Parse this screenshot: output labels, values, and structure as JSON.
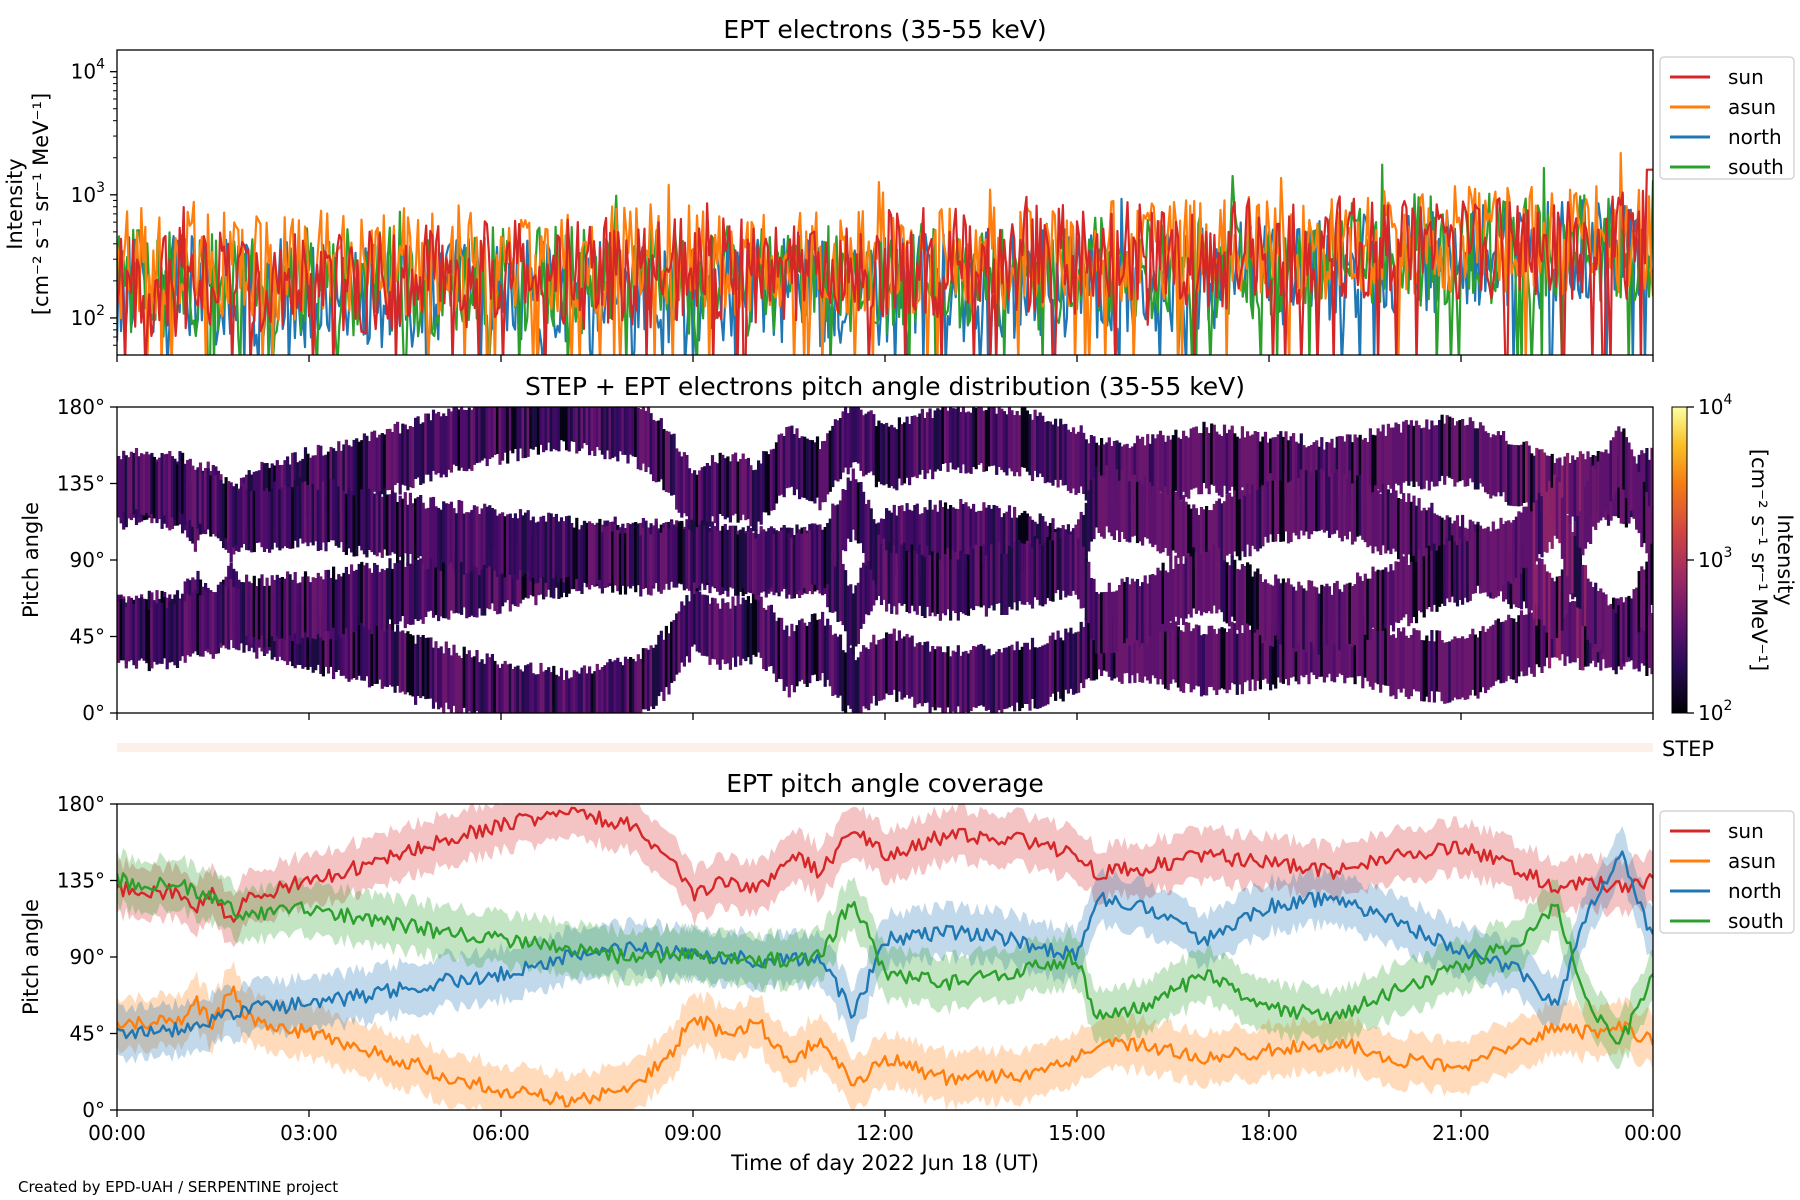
{
  "footer": "Created by EPD-UAH / SERPENTINE project",
  "colors": {
    "sun": "#d62728",
    "asun": "#ff7f0e",
    "north": "#1f77b4",
    "south": "#2ca02c",
    "step_bar": "#fdf0e8"
  },
  "chart_data": [
    {
      "type": "line",
      "title": "EPT electrons (35-55 keV)",
      "ylabel_line1": "Intensity",
      "ylabel_line2": "[cm⁻² s⁻¹ sr⁻¹ MeV⁻¹]",
      "yscale": "log",
      "ylim": [
        50,
        15000
      ],
      "yticks": [
        {
          "v": 100,
          "base": "10",
          "exp": "2"
        },
        {
          "v": 1000,
          "base": "10",
          "exp": "3"
        },
        {
          "v": 10000,
          "base": "10",
          "exp": "4"
        }
      ],
      "xlim_hours": [
        0,
        24
      ],
      "legend_position": "outside-right",
      "series": [
        {
          "name": "sun",
          "color": "#d62728",
          "trend": [
            [
              0,
              200
            ],
            [
              3,
              200
            ],
            [
              6,
              220
            ],
            [
              9,
              240
            ],
            [
              12,
              280
            ],
            [
              15,
              300
            ],
            [
              18,
              340
            ],
            [
              21,
              400
            ],
            [
              24,
              400
            ]
          ],
          "spike": [
            23.9,
            1600
          ]
        },
        {
          "name": "asun",
          "color": "#ff7f0e",
          "trend": [
            [
              0,
              280
            ],
            [
              3,
              270
            ],
            [
              6,
              300
            ],
            [
              9,
              300
            ],
            [
              12,
              280
            ],
            [
              15,
              320
            ],
            [
              18,
              360
            ],
            [
              21,
              420
            ],
            [
              24,
              420
            ]
          ]
        },
        {
          "name": "north",
          "color": "#1f77b4",
          "trend": [
            [
              0,
              170
            ],
            [
              3,
              160
            ],
            [
              6,
              160
            ],
            [
              9,
              150
            ],
            [
              12,
              170
            ],
            [
              15,
              190
            ],
            [
              18,
              240
            ],
            [
              21,
              320
            ],
            [
              24,
              330
            ]
          ]
        },
        {
          "name": "south",
          "color": "#2ca02c",
          "trend": [
            [
              0,
              200
            ],
            [
              3,
              190
            ],
            [
              6,
              200
            ],
            [
              9,
              200
            ],
            [
              12,
              200
            ],
            [
              15,
              230
            ],
            [
              18,
              280
            ],
            [
              21,
              360
            ],
            [
              24,
              380
            ]
          ]
        }
      ]
    },
    {
      "type": "heatmap",
      "title": "STEP + EPT electrons pitch angle distribution (35-55 keV)",
      "ylabel": "Pitch angle",
      "yticks": [
        "0°",
        "45°",
        "90°",
        "135°",
        "180°"
      ],
      "ylim": [
        0,
        180
      ],
      "xlim_hours": [
        0,
        24
      ],
      "colorbar_label_line1": "Intensity",
      "colorbar_label_line2": "[cm⁻² s⁻¹ sr⁻¹ MeV⁻¹]",
      "colorbar_scale": "log",
      "colorbar_range": [
        100,
        10000
      ],
      "colorbar_ticks": [
        {
          "base": "10",
          "exp": "2"
        },
        {
          "base": "10",
          "exp": "3"
        },
        {
          "base": "10",
          "exp": "4"
        }
      ],
      "colormap": "inferno",
      "step_label": "STEP"
    },
    {
      "type": "area",
      "title": "EPT pitch angle coverage",
      "ylabel": "Pitch angle",
      "xlabel": "Time of day 2022 Jun 18 (UT)",
      "yticks": [
        "0°",
        "45°",
        "90°",
        "135°",
        "180°"
      ],
      "ylim": [
        0,
        180
      ],
      "xlim_hours": [
        0,
        24
      ],
      "xticks": [
        "00:00",
        "03:00",
        "06:00",
        "09:00",
        "12:00",
        "15:00",
        "18:00",
        "21:00",
        "00:00"
      ],
      "legend_position": "outside-right",
      "band_halfwidth_deg": 15,
      "series": [
        {
          "name": "sun",
          "color": "#d62728",
          "x": [
            0,
            1,
            1.2,
            1.5,
            1.8,
            2,
            3,
            4,
            5,
            6,
            7,
            8,
            8.6,
            9,
            9.5,
            10,
            10.5,
            11,
            11.5,
            12,
            13,
            14,
            15,
            15.3,
            16,
            17,
            18,
            19,
            20,
            21,
            22,
            22.5,
            23,
            23.5,
            24
          ],
          "y": [
            130,
            128,
            115,
            130,
            108,
            125,
            135,
            145,
            158,
            168,
            175,
            168,
            150,
            125,
            135,
            128,
            150,
            140,
            165,
            150,
            162,
            160,
            150,
            140,
            142,
            150,
            145,
            140,
            150,
            155,
            140,
            130,
            135,
            130,
            135
          ]
        },
        {
          "name": "asun",
          "color": "#ff7f0e",
          "x": [
            0,
            1,
            1.2,
            1.5,
            1.8,
            2,
            3,
            4,
            5,
            6,
            7,
            8,
            8.6,
            9,
            9.5,
            10,
            10.5,
            11,
            11.5,
            12,
            13,
            14,
            15,
            15.3,
            16,
            17,
            18,
            19,
            20,
            21,
            22,
            22.5,
            23,
            23.5,
            24
          ],
          "y": [
            50,
            52,
            65,
            50,
            72,
            55,
            45,
            35,
            22,
            12,
            5,
            12,
            30,
            55,
            45,
            52,
            30,
            40,
            15,
            30,
            18,
            20,
            30,
            40,
            38,
            30,
            35,
            40,
            30,
            25,
            40,
            50,
            45,
            50,
            40
          ]
        },
        {
          "name": "north",
          "color": "#1f77b4",
          "x": [
            0,
            1,
            2,
            3,
            4,
            5,
            6,
            7,
            8,
            9,
            10,
            11,
            11.5,
            12,
            13,
            14,
            15,
            15.3,
            16,
            17,
            18,
            19,
            20,
            21,
            22,
            22.5,
            23,
            23.5,
            24
          ],
          "y": [
            45,
            48,
            60,
            62,
            68,
            75,
            80,
            90,
            95,
            92,
            88,
            90,
            55,
            100,
            105,
            100,
            90,
            125,
            120,
            100,
            120,
            125,
            110,
            95,
            80,
            60,
            120,
            150,
            100
          ]
        },
        {
          "name": "south",
          "color": "#2ca02c",
          "x": [
            0,
            1,
            2,
            3,
            4,
            5,
            6,
            7,
            8,
            9,
            10,
            11,
            11.5,
            12,
            13,
            14,
            15,
            15.3,
            16,
            17,
            18,
            19,
            20,
            21,
            22,
            22.5,
            23,
            23.5,
            24
          ],
          "y": [
            135,
            132,
            115,
            118,
            112,
            105,
            100,
            95,
            90,
            92,
            88,
            90,
            125,
            80,
            75,
            80,
            90,
            55,
            60,
            80,
            60,
            55,
            70,
            85,
            100,
            120,
            60,
            40,
            80
          ]
        }
      ]
    }
  ]
}
